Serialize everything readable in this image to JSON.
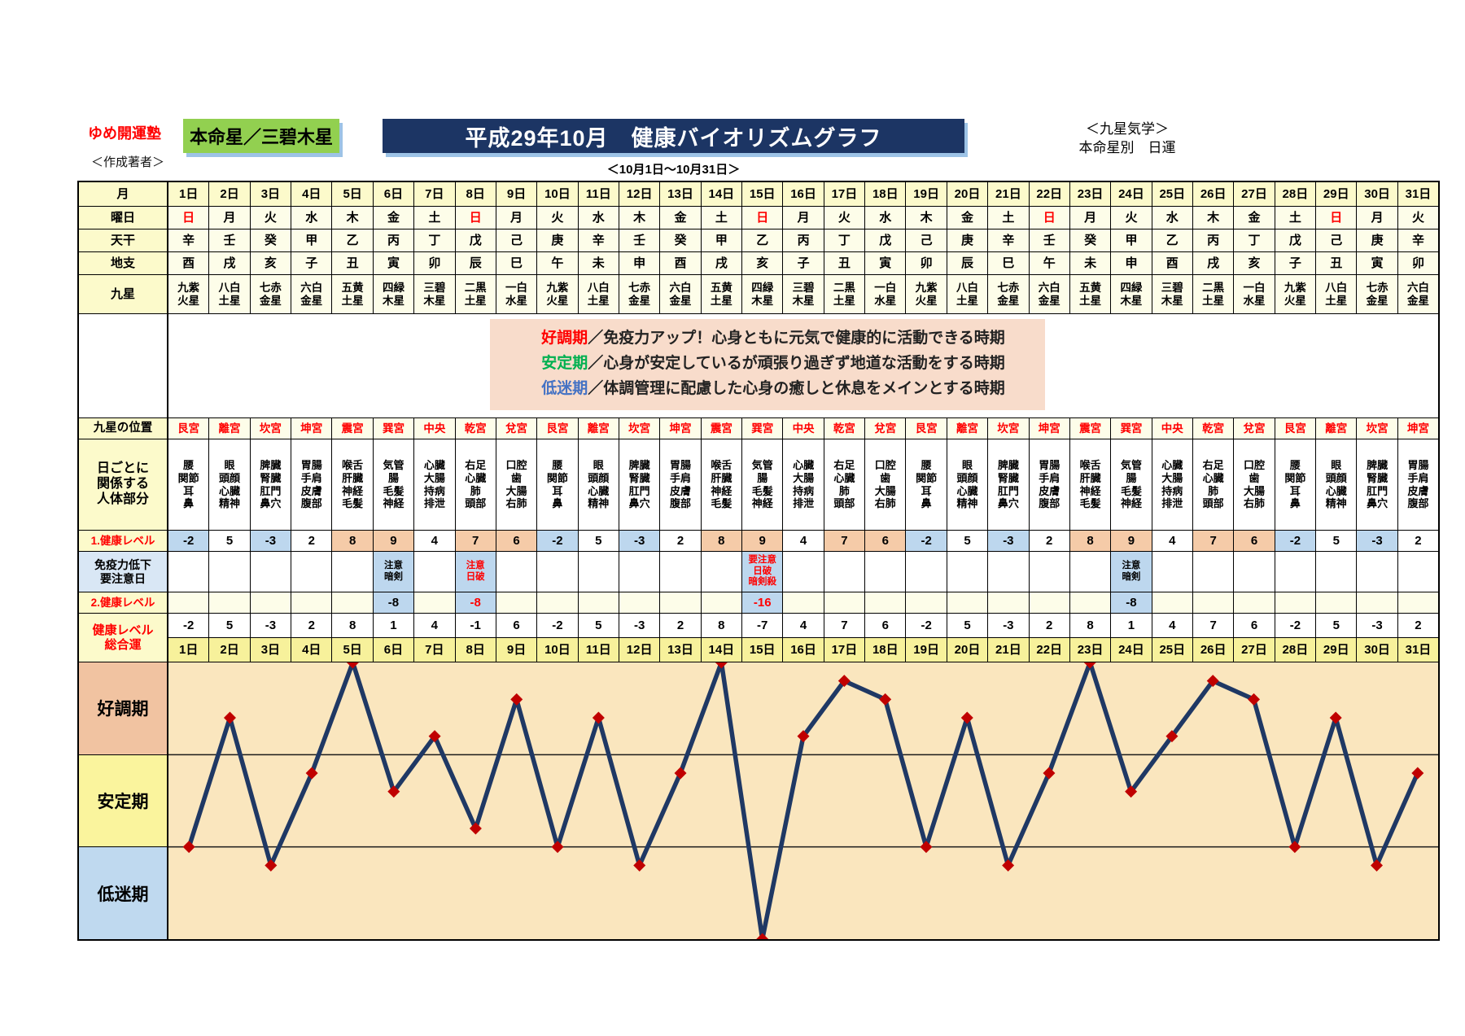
{
  "header": {
    "brand": "ゆめ開運塾",
    "author_label": "＜作成著者＞",
    "honmeisei": "本命星／三碧木星",
    "title": "平成29年10月　健康バイオリズムグラフ",
    "right_line1": "＜九星気学＞",
    "right_line2": "本命星別　日運",
    "subtitle": "＜10月1日～10月31日＞"
  },
  "colors": {
    "title_bg": "#1C3564",
    "title_shadow": "#9DC3E6",
    "honmeisei_bg": "#92D050",
    "brand_red": "#FF0000",
    "header_yellow": "#FCFACB",
    "data_cream": "#FDFDE9",
    "salmon_cell": "#F5CBA8",
    "blue_cell": "#BDD7EE",
    "immune_label_bg": "#D9E7F5",
    "bottom_date_yellow": "#F7F19B",
    "legend_bg": "#F8DCCB"
  },
  "row_labels": {
    "month": "月",
    "weekday": "曜日",
    "tenkan": "天干",
    "chishi": "地支",
    "kyusei": "九星",
    "position": "九星の位置",
    "body": [
      "日ごとに",
      "関係する",
      "人体部分"
    ],
    "level1": "1.健康レベル",
    "immunity": [
      "免疫力低下",
      "要注意日"
    ],
    "level2": "2.健康レベル",
    "total": [
      "健康レベル",
      "総合運"
    ]
  },
  "legend": {
    "bg": "#F8DCCB",
    "lines": [
      {
        "term": "好調期",
        "color": "#FF0000",
        "desc": "／免疫力アップ！心身ともに元気で健康的に活動できる時期"
      },
      {
        "term": "安定期",
        "color": "#00B050",
        "desc": "／心身が安定しているが頑張り過ぎず地道な活動をする時期"
      },
      {
        "term": "低迷期",
        "color": "#4472C4",
        "desc": "／体調管理に配慮した心身の癒しと休息をメインとする時期"
      }
    ]
  },
  "palace_meta": {
    "艮宮": {
      "body": [
        "腰",
        "関節",
        "耳",
        "鼻"
      ],
      "level1": -2,
      "level1_bg": "blue"
    },
    "離宮": {
      "body": [
        "眼",
        "頭顔",
        "心臓",
        "精神"
      ],
      "level1": 5,
      "level1_bg": "white"
    },
    "坎宮": {
      "body": [
        "脾臓",
        "腎臓",
        "肛門",
        "鼻穴"
      ],
      "level1": -3,
      "level1_bg": "blue"
    },
    "坤宮": {
      "body": [
        "胃腸",
        "手肩",
        "皮膚",
        "腹部"
      ],
      "level1": 2,
      "level1_bg": "white"
    },
    "震宮": {
      "body": [
        "喉舌",
        "肝臓",
        "神経",
        "毛髪"
      ],
      "level1": 8,
      "level1_bg": "salmon"
    },
    "巽宮": {
      "body": [
        "気管",
        "腸",
        "毛髪",
        "神経"
      ],
      "level1": 9,
      "level1_bg": "salmon"
    },
    "中央": {
      "body": [
        "心臓",
        "大腸",
        "持病",
        "排泄"
      ],
      "level1": 4,
      "level1_bg": "white"
    },
    "乾宮": {
      "body": [
        "右足",
        "心臓",
        "肺",
        "頭部"
      ],
      "level1": 7,
      "level1_bg": "salmon"
    },
    "兌宮": {
      "body": [
        "口腔",
        "歯",
        "大腸",
        "右肺"
      ],
      "level1": 6,
      "level1_bg": "salmon"
    }
  },
  "days": [
    {
      "date": "1日",
      "weekday": "日",
      "weekday_color": "red",
      "stem": "辛",
      "branch": "酉",
      "star": [
        "九紫",
        "火星"
      ],
      "palace": "艮宮",
      "caution": null,
      "level2": null,
      "total": -2
    },
    {
      "date": "2日",
      "weekday": "月",
      "weekday_color": "black",
      "stem": "壬",
      "branch": "戌",
      "star": [
        "八白",
        "土星"
      ],
      "palace": "離宮",
      "caution": null,
      "level2": null,
      "total": 5
    },
    {
      "date": "3日",
      "weekday": "火",
      "weekday_color": "black",
      "stem": "癸",
      "branch": "亥",
      "star": [
        "七赤",
        "金星"
      ],
      "palace": "坎宮",
      "caution": null,
      "level2": null,
      "total": -3
    },
    {
      "date": "4日",
      "weekday": "水",
      "weekday_color": "black",
      "stem": "甲",
      "branch": "子",
      "star": [
        "六白",
        "金星"
      ],
      "palace": "坤宮",
      "caution": null,
      "level2": null,
      "total": 2
    },
    {
      "date": "5日",
      "weekday": "木",
      "weekday_color": "black",
      "stem": "乙",
      "branch": "丑",
      "star": [
        "五黄",
        "土星"
      ],
      "palace": "震宮",
      "caution": null,
      "level2": null,
      "total": 8
    },
    {
      "date": "6日",
      "weekday": "金",
      "weekday_color": "black",
      "stem": "丙",
      "branch": "寅",
      "star": [
        "四緑",
        "木星"
      ],
      "palace": "巽宮",
      "caution": {
        "lines": [
          "注意",
          "暗剣"
        ],
        "color": "black"
      },
      "level2": {
        "value": -8,
        "color": "black"
      },
      "total": 1
    },
    {
      "date": "7日",
      "weekday": "土",
      "weekday_color": "black",
      "stem": "丁",
      "branch": "卯",
      "star": [
        "三碧",
        "木星"
      ],
      "palace": "中央",
      "caution": null,
      "level2": null,
      "total": 4
    },
    {
      "date": "8日",
      "weekday": "日",
      "weekday_color": "red",
      "stem": "戊",
      "branch": "辰",
      "star": [
        "二黒",
        "土星"
      ],
      "palace": "乾宮",
      "caution": {
        "lines": [
          "注意",
          "日破"
        ],
        "color": "red"
      },
      "level2": {
        "value": -8,
        "color": "red"
      },
      "total": -1
    },
    {
      "date": "9日",
      "weekday": "月",
      "weekday_color": "black",
      "stem": "己",
      "branch": "巳",
      "star": [
        "一白",
        "水星"
      ],
      "palace": "兌宮",
      "caution": null,
      "level2": null,
      "total": 6
    },
    {
      "date": "10日",
      "weekday": "火",
      "weekday_color": "black",
      "stem": "庚",
      "branch": "午",
      "star": [
        "九紫",
        "火星"
      ],
      "palace": "艮宮",
      "caution": null,
      "level2": null,
      "total": -2
    },
    {
      "date": "11日",
      "weekday": "水",
      "weekday_color": "black",
      "stem": "辛",
      "branch": "未",
      "star": [
        "八白",
        "土星"
      ],
      "palace": "離宮",
      "caution": null,
      "level2": null,
      "total": 5
    },
    {
      "date": "12日",
      "weekday": "木",
      "weekday_color": "black",
      "stem": "壬",
      "branch": "申",
      "star": [
        "七赤",
        "金星"
      ],
      "palace": "坎宮",
      "caution": null,
      "level2": null,
      "total": -3
    },
    {
      "date": "13日",
      "weekday": "金",
      "weekday_color": "black",
      "stem": "癸",
      "branch": "酉",
      "star": [
        "六白",
        "金星"
      ],
      "palace": "坤宮",
      "caution": null,
      "level2": null,
      "total": 2
    },
    {
      "date": "14日",
      "weekday": "土",
      "weekday_color": "black",
      "stem": "甲",
      "branch": "戌",
      "star": [
        "五黄",
        "土星"
      ],
      "palace": "震宮",
      "caution": null,
      "level2": null,
      "total": 8
    },
    {
      "date": "15日",
      "weekday": "日",
      "weekday_color": "red",
      "stem": "乙",
      "branch": "亥",
      "star": [
        "四緑",
        "木星"
      ],
      "palace": "巽宮",
      "caution": {
        "lines": [
          "要注意",
          "日破",
          "暗剣殺"
        ],
        "color": "red"
      },
      "level2": {
        "value": -16,
        "color": "red"
      },
      "total": -7
    },
    {
      "date": "16日",
      "weekday": "月",
      "weekday_color": "black",
      "stem": "丙",
      "branch": "子",
      "star": [
        "三碧",
        "木星"
      ],
      "palace": "中央",
      "caution": null,
      "level2": null,
      "total": 4
    },
    {
      "date": "17日",
      "weekday": "火",
      "weekday_color": "black",
      "stem": "丁",
      "branch": "丑",
      "star": [
        "二黒",
        "土星"
      ],
      "palace": "乾宮",
      "caution": null,
      "level2": null,
      "total": 7
    },
    {
      "date": "18日",
      "weekday": "水",
      "weekday_color": "black",
      "stem": "戊",
      "branch": "寅",
      "star": [
        "一白",
        "水星"
      ],
      "palace": "兌宮",
      "caution": null,
      "level2": null,
      "total": 6
    },
    {
      "date": "19日",
      "weekday": "木",
      "weekday_color": "black",
      "stem": "己",
      "branch": "卯",
      "star": [
        "九紫",
        "火星"
      ],
      "palace": "艮宮",
      "caution": null,
      "level2": null,
      "total": -2
    },
    {
      "date": "20日",
      "weekday": "金",
      "weekday_color": "black",
      "stem": "庚",
      "branch": "辰",
      "star": [
        "八白",
        "土星"
      ],
      "palace": "離宮",
      "caution": null,
      "level2": null,
      "total": 5
    },
    {
      "date": "21日",
      "weekday": "土",
      "weekday_color": "black",
      "stem": "辛",
      "branch": "巳",
      "star": [
        "七赤",
        "金星"
      ],
      "palace": "坎宮",
      "caution": null,
      "level2": null,
      "total": -3
    },
    {
      "date": "22日",
      "weekday": "日",
      "weekday_color": "red",
      "stem": "壬",
      "branch": "午",
      "star": [
        "六白",
        "金星"
      ],
      "palace": "坤宮",
      "caution": null,
      "level2": null,
      "total": 2
    },
    {
      "date": "23日",
      "weekday": "月",
      "weekday_color": "black",
      "stem": "癸",
      "branch": "未",
      "star": [
        "五黄",
        "土星"
      ],
      "palace": "震宮",
      "caution": null,
      "level2": null,
      "total": 8
    },
    {
      "date": "24日",
      "weekday": "火",
      "weekday_color": "black",
      "stem": "甲",
      "branch": "申",
      "star": [
        "四緑",
        "木星"
      ],
      "palace": "巽宮",
      "caution": {
        "lines": [
          "注意",
          "暗剣"
        ],
        "color": "black"
      },
      "level2": {
        "value": -8,
        "color": "black"
      },
      "total": 1
    },
    {
      "date": "25日",
      "weekday": "水",
      "weekday_color": "black",
      "stem": "乙",
      "branch": "酉",
      "star": [
        "三碧",
        "木星"
      ],
      "palace": "中央",
      "caution": null,
      "level2": null,
      "total": 4
    },
    {
      "date": "26日",
      "weekday": "木",
      "weekday_color": "black",
      "stem": "丙",
      "branch": "戌",
      "star": [
        "二黒",
        "土星"
      ],
      "palace": "乾宮",
      "caution": null,
      "level2": null,
      "total": 7
    },
    {
      "date": "27日",
      "weekday": "金",
      "weekday_color": "black",
      "stem": "丁",
      "branch": "亥",
      "star": [
        "一白",
        "水星"
      ],
      "palace": "兌宮",
      "caution": null,
      "level2": null,
      "total": 6
    },
    {
      "date": "28日",
      "weekday": "土",
      "weekday_color": "black",
      "stem": "戊",
      "branch": "子",
      "star": [
        "九紫",
        "火星"
      ],
      "palace": "艮宮",
      "caution": null,
      "level2": null,
      "total": -2
    },
    {
      "date": "29日",
      "weekday": "日",
      "weekday_color": "red",
      "stem": "己",
      "branch": "丑",
      "star": [
        "八白",
        "土星"
      ],
      "palace": "離宮",
      "caution": null,
      "level2": null,
      "total": 5
    },
    {
      "date": "30日",
      "weekday": "月",
      "weekday_color": "black",
      "stem": "庚",
      "branch": "寅",
      "star": [
        "七赤",
        "金星"
      ],
      "palace": "坎宮",
      "caution": null,
      "level2": null,
      "total": -3
    },
    {
      "date": "31日",
      "weekday": "火",
      "weekday_color": "black",
      "stem": "辛",
      "branch": "卯",
      "star": [
        "六白",
        "金星"
      ],
      "palace": "坤宮",
      "caution": null,
      "level2": null,
      "total": 2
    }
  ],
  "chart_data": {
    "type": "line",
    "title": "健康バイオリズムグラフ（健康レベル総合運）",
    "x_labels": [
      "1日",
      "2日",
      "3日",
      "4日",
      "5日",
      "6日",
      "7日",
      "8日",
      "9日",
      "10日",
      "11日",
      "12日",
      "13日",
      "14日",
      "15日",
      "16日",
      "17日",
      "18日",
      "19日",
      "20日",
      "21日",
      "22日",
      "23日",
      "24日",
      "25日",
      "26日",
      "27日",
      "28日",
      "29日",
      "30日",
      "31日"
    ],
    "values": [
      -2,
      5,
      -3,
      2,
      8,
      1,
      4,
      -1,
      6,
      -2,
      5,
      -3,
      2,
      8,
      -7,
      4,
      7,
      6,
      -2,
      5,
      -3,
      2,
      8,
      1,
      4,
      7,
      6,
      -2,
      5,
      -3,
      2
    ],
    "ylim": [
      -7,
      8
    ],
    "band_boundaries": [
      3,
      -2
    ],
    "zones": [
      {
        "label": "好調期",
        "color": "#F1C3A1",
        "range": [
          3,
          8
        ]
      },
      {
        "label": "安定期",
        "color": "#FAF49D",
        "range": [
          -2,
          3
        ]
      },
      {
        "label": "低迷期",
        "color": "#BFD9EF",
        "range": [
          -7,
          -2
        ]
      }
    ],
    "grid": "zone boundaries only",
    "legend_position": "left",
    "line_color": "#1F3864",
    "marker_color": "#C00000",
    "plot_bg": "#FAE6BE"
  }
}
